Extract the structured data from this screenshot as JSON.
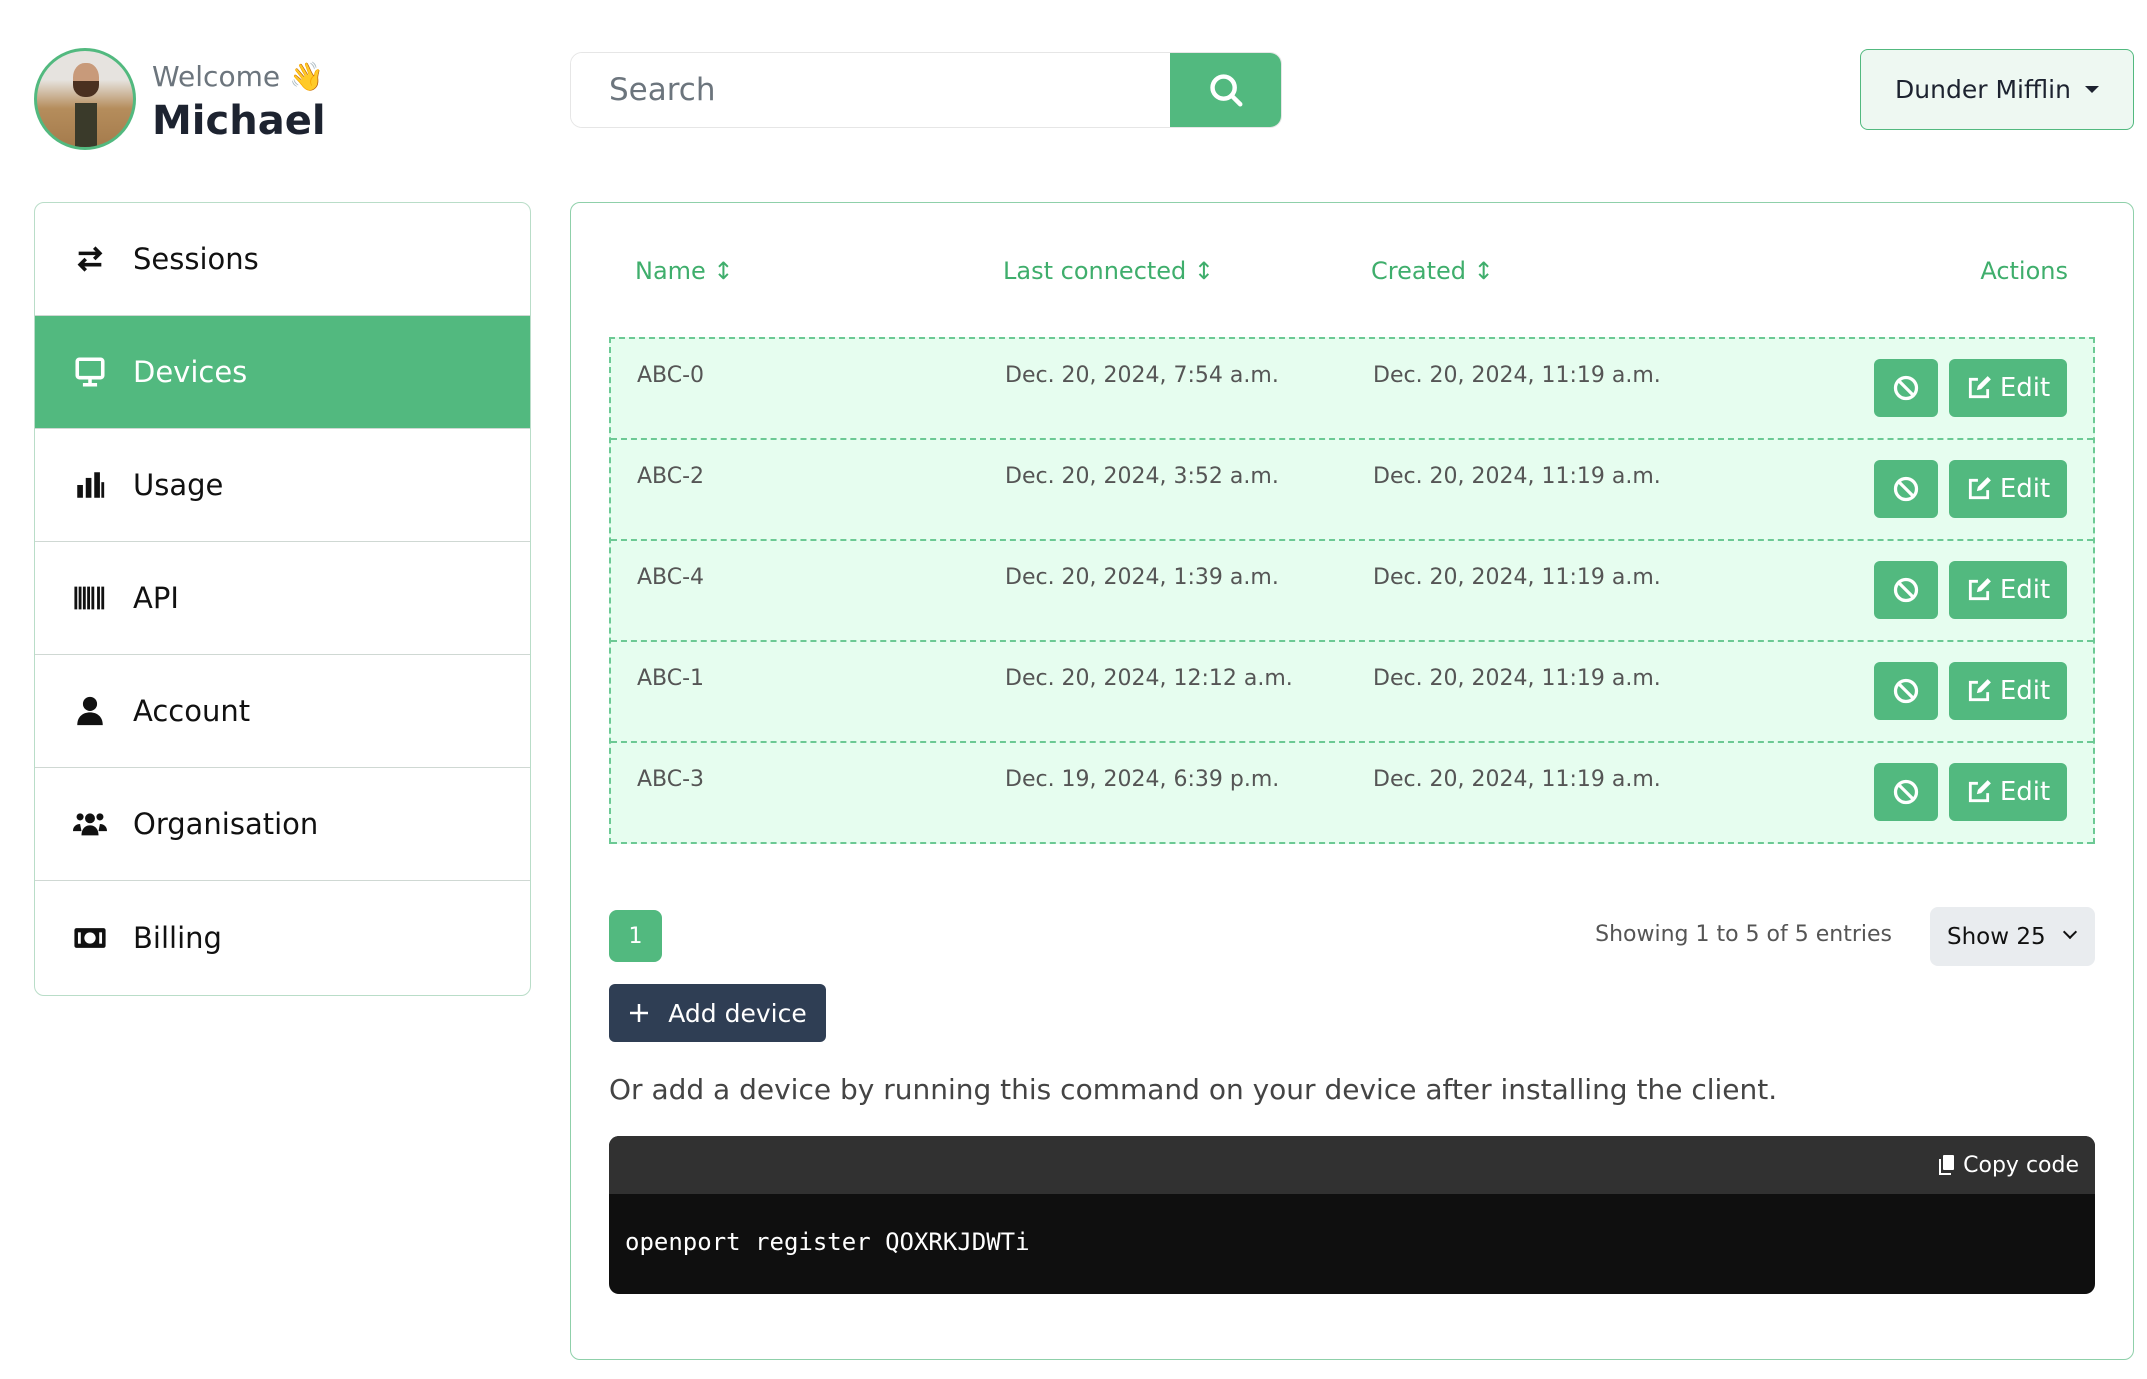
{
  "user": {
    "welcome": "Welcome 👋",
    "name": "Michael"
  },
  "search": {
    "placeholder": "Search",
    "icon": "search-icon"
  },
  "org": {
    "selected": "Dunder Mifflin"
  },
  "sidebar": {
    "items": [
      {
        "label": "Sessions",
        "icon": "arrows-exchange-icon"
      },
      {
        "label": "Devices",
        "icon": "monitor-icon",
        "active": true
      },
      {
        "label": "Usage",
        "icon": "bar-chart-icon"
      },
      {
        "label": "API",
        "icon": "barcode-icon"
      },
      {
        "label": "Account",
        "icon": "user-icon"
      },
      {
        "label": "Organisation",
        "icon": "users-icon"
      },
      {
        "label": "Billing",
        "icon": "money-icon"
      }
    ]
  },
  "table": {
    "headers": {
      "name": "Name ↕",
      "last": "Last connected ↕",
      "created": "Created ↕",
      "actions": "Actions"
    },
    "rows": [
      {
        "name": "ABC-0",
        "last": "Dec. 20, 2024, 7:54 a.m.",
        "created": "Dec. 20, 2024, 11:19 a.m."
      },
      {
        "name": "ABC-2",
        "last": "Dec. 20, 2024, 3:52 a.m.",
        "created": "Dec. 20, 2024, 11:19 a.m."
      },
      {
        "name": "ABC-4",
        "last": "Dec. 20, 2024, 1:39 a.m.",
        "created": "Dec. 20, 2024, 11:19 a.m."
      },
      {
        "name": "ABC-1",
        "last": "Dec. 20, 2024, 12:12 a.m.",
        "created": "Dec. 20, 2024, 11:19 a.m."
      },
      {
        "name": "ABC-3",
        "last": "Dec. 19, 2024, 6:39 p.m.",
        "created": "Dec. 20, 2024, 11:19 a.m."
      }
    ],
    "edit_label": "Edit"
  },
  "pagination": {
    "current": "1",
    "showing": "Showing 1 to 5 of 5 entries",
    "page_size": "Show 25"
  },
  "add_device": {
    "label": "Add device"
  },
  "instructions": "Or add a device by running this command on your device after installing the client.",
  "code": {
    "copy_label": "Copy code",
    "command": "openport register QOXRKJDWTi"
  },
  "colors": {
    "accent": "#52b97f",
    "row_bg": "#e6fdef",
    "dark_button": "#2f3e54"
  }
}
